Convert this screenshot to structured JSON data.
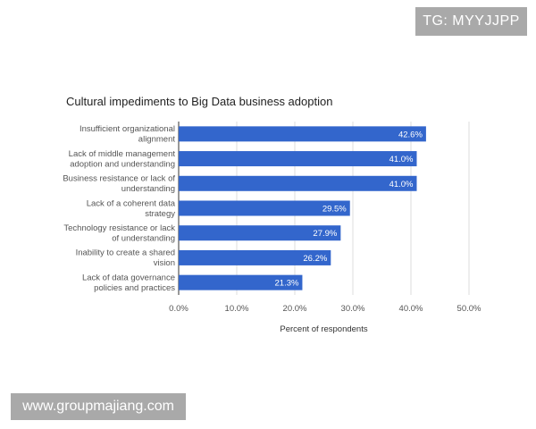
{
  "watermark_top": "TG: MYYJJPP",
  "watermark_bottom": "www.groupmajiang.com",
  "chart_data": {
    "type": "bar",
    "orientation": "horizontal",
    "title": "Cultural impediments to Big Data business adoption",
    "xlabel": "Percent of respondents",
    "ylabel": "",
    "categories": [
      [
        "Insufficient organizational",
        "alignment"
      ],
      [
        "Lack of middle management",
        "adoption and understanding"
      ],
      [
        "Business resistance or lack of",
        "understanding"
      ],
      [
        "Lack of a coherent data",
        "strategy"
      ],
      [
        "Technology resistance or lack",
        "of understanding"
      ],
      [
        "Inability to create a shared",
        "vision"
      ],
      [
        "Lack of data governance",
        "policies and practices"
      ]
    ],
    "values": [
      42.6,
      41.0,
      41.0,
      29.5,
      27.9,
      26.2,
      21.3
    ],
    "data_labels": [
      "42.6%",
      "41.0%",
      "41.0%",
      "29.5%",
      "27.9%",
      "26.2%",
      "21.3%"
    ],
    "xlim": [
      0,
      50
    ],
    "xticks": [
      0,
      10,
      20,
      30,
      40,
      50
    ],
    "xtick_labels": [
      "0.0%",
      "10.0%",
      "20.0%",
      "30.0%",
      "40.0%",
      "50.0%"
    ],
    "grid": true,
    "bar_color": "#3366cc",
    "legend": "none"
  }
}
